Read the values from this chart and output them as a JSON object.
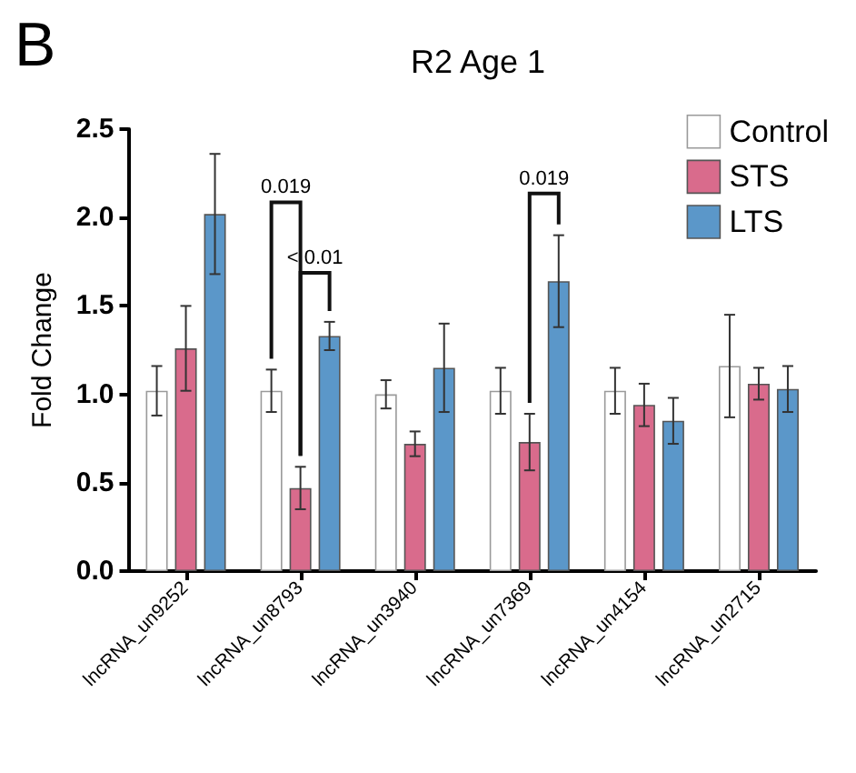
{
  "chart_data": {
    "type": "bar",
    "title": "R2 Age 1",
    "ylabel": "Fold Change",
    "categories": [
      "lncRNA_un9252",
      "lncRNA_un8793",
      "lncRNA_un3940",
      "lncRNA_un7369",
      "lncRNA_un4154",
      "lncRNA_un2715"
    ],
    "series": [
      {
        "name": "Control",
        "color": "#ffffff",
        "values": [
          1.02,
          1.02,
          1.0,
          1.02,
          1.02,
          1.16
        ],
        "errors": [
          0.14,
          0.12,
          0.08,
          0.13,
          0.13,
          0.29
        ]
      },
      {
        "name": "STS",
        "color": "#d96b8c",
        "values": [
          1.26,
          0.47,
          0.72,
          0.73,
          0.94,
          1.06
        ],
        "errors": [
          0.24,
          0.12,
          0.07,
          0.16,
          0.12,
          0.09
        ]
      },
      {
        "name": "LTS",
        "color": "#5b97c9",
        "values": [
          2.02,
          1.33,
          1.15,
          1.64,
          0.85,
          1.03
        ],
        "errors": [
          0.34,
          0.08,
          0.25,
          0.26,
          0.13,
          0.13
        ]
      }
    ],
    "ylim": [
      0,
      2.5
    ],
    "yticks": [
      {
        "value": 0,
        "label": "0.0"
      },
      {
        "value": 0.5,
        "label": "0.5"
      },
      {
        "value": 1,
        "label": "1.0"
      },
      {
        "value": 1.5,
        "label": "1.5"
      },
      {
        "value": 2,
        "label": "2.0"
      },
      {
        "value": 2.5,
        "label": "2.5"
      }
    ],
    "grid": false,
    "legend": "top right",
    "annotations": [
      "B",
      "0.019",
      "< 0.01",
      "0.019"
    ]
  }
}
